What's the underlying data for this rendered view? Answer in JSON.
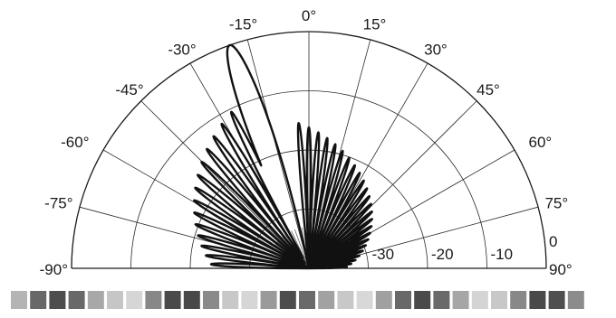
{
  "chart_data": {
    "type": "polar-line",
    "title": "",
    "angle_range_deg": [
      -90,
      90
    ],
    "angle_ticks": [
      {
        "deg": 0,
        "label": "0°"
      },
      {
        "deg": 15,
        "label": "15°"
      },
      {
        "deg": 30,
        "label": "30°"
      },
      {
        "deg": 45,
        "label": "45°"
      },
      {
        "deg": 60,
        "label": "60°"
      },
      {
        "deg": 75,
        "label": "75°"
      },
      {
        "deg": 90,
        "label": "90°"
      },
      {
        "deg": -15,
        "label": "-15°"
      },
      {
        "deg": -30,
        "label": "-30°"
      },
      {
        "deg": -45,
        "label": "-45°"
      },
      {
        "deg": -60,
        "label": "-60°"
      },
      {
        "deg": -75,
        "label": "-75°"
      },
      {
        "deg": -90,
        "label": "-90°"
      }
    ],
    "radial_range_db": [
      -40,
      0
    ],
    "radial_ticks": [
      {
        "value": -30,
        "label": "-30"
      },
      {
        "value": -20,
        "label": "-20"
      },
      {
        "value": -10,
        "label": "-10"
      },
      {
        "value": 0,
        "label": "0"
      }
    ],
    "series": [
      {
        "main_lobe": {
          "angle_deg": -19.5,
          "peak_db": 0,
          "beamwidth_deg": 4.0
        },
        "sidelobes_negative_side": {
          "angle_from_deg": -24,
          "angle_to_deg": -90,
          "count": 14,
          "level_start_db": -10,
          "level_end_db": -24
        },
        "sidelobes_positive_side": {
          "angle_from_deg": -6,
          "angle_to_deg": 90,
          "count": 24,
          "level_start_db": -15,
          "level_end_db": -34
        },
        "floor_db": -40
      }
    ],
    "grid": true,
    "legend": "none"
  },
  "strip": {
    "cells": [
      "#b4b4b4",
      "#686868",
      "#4d4d4d",
      "#686868",
      "#a8a8a8",
      "#c6c6c6",
      "#d6d6d6",
      "#888888",
      "#4a4a4a",
      "#484848",
      "#8a8a8a",
      "#c8c8c8",
      "#d6d6d6",
      "#9a9a9a",
      "#4d4d4d",
      "#6a6a6a",
      "#a2a2a2",
      "#c8c8c8",
      "#d8d8d8",
      "#a0a0a0",
      "#686868",
      "#4a4a4a",
      "#6a6a6a",
      "#a6a6a6",
      "#d4d4d4",
      "#c8c8c8",
      "#888888",
      "#4a4a4a",
      "#4f4f4f",
      "#8c8c8c"
    ]
  }
}
